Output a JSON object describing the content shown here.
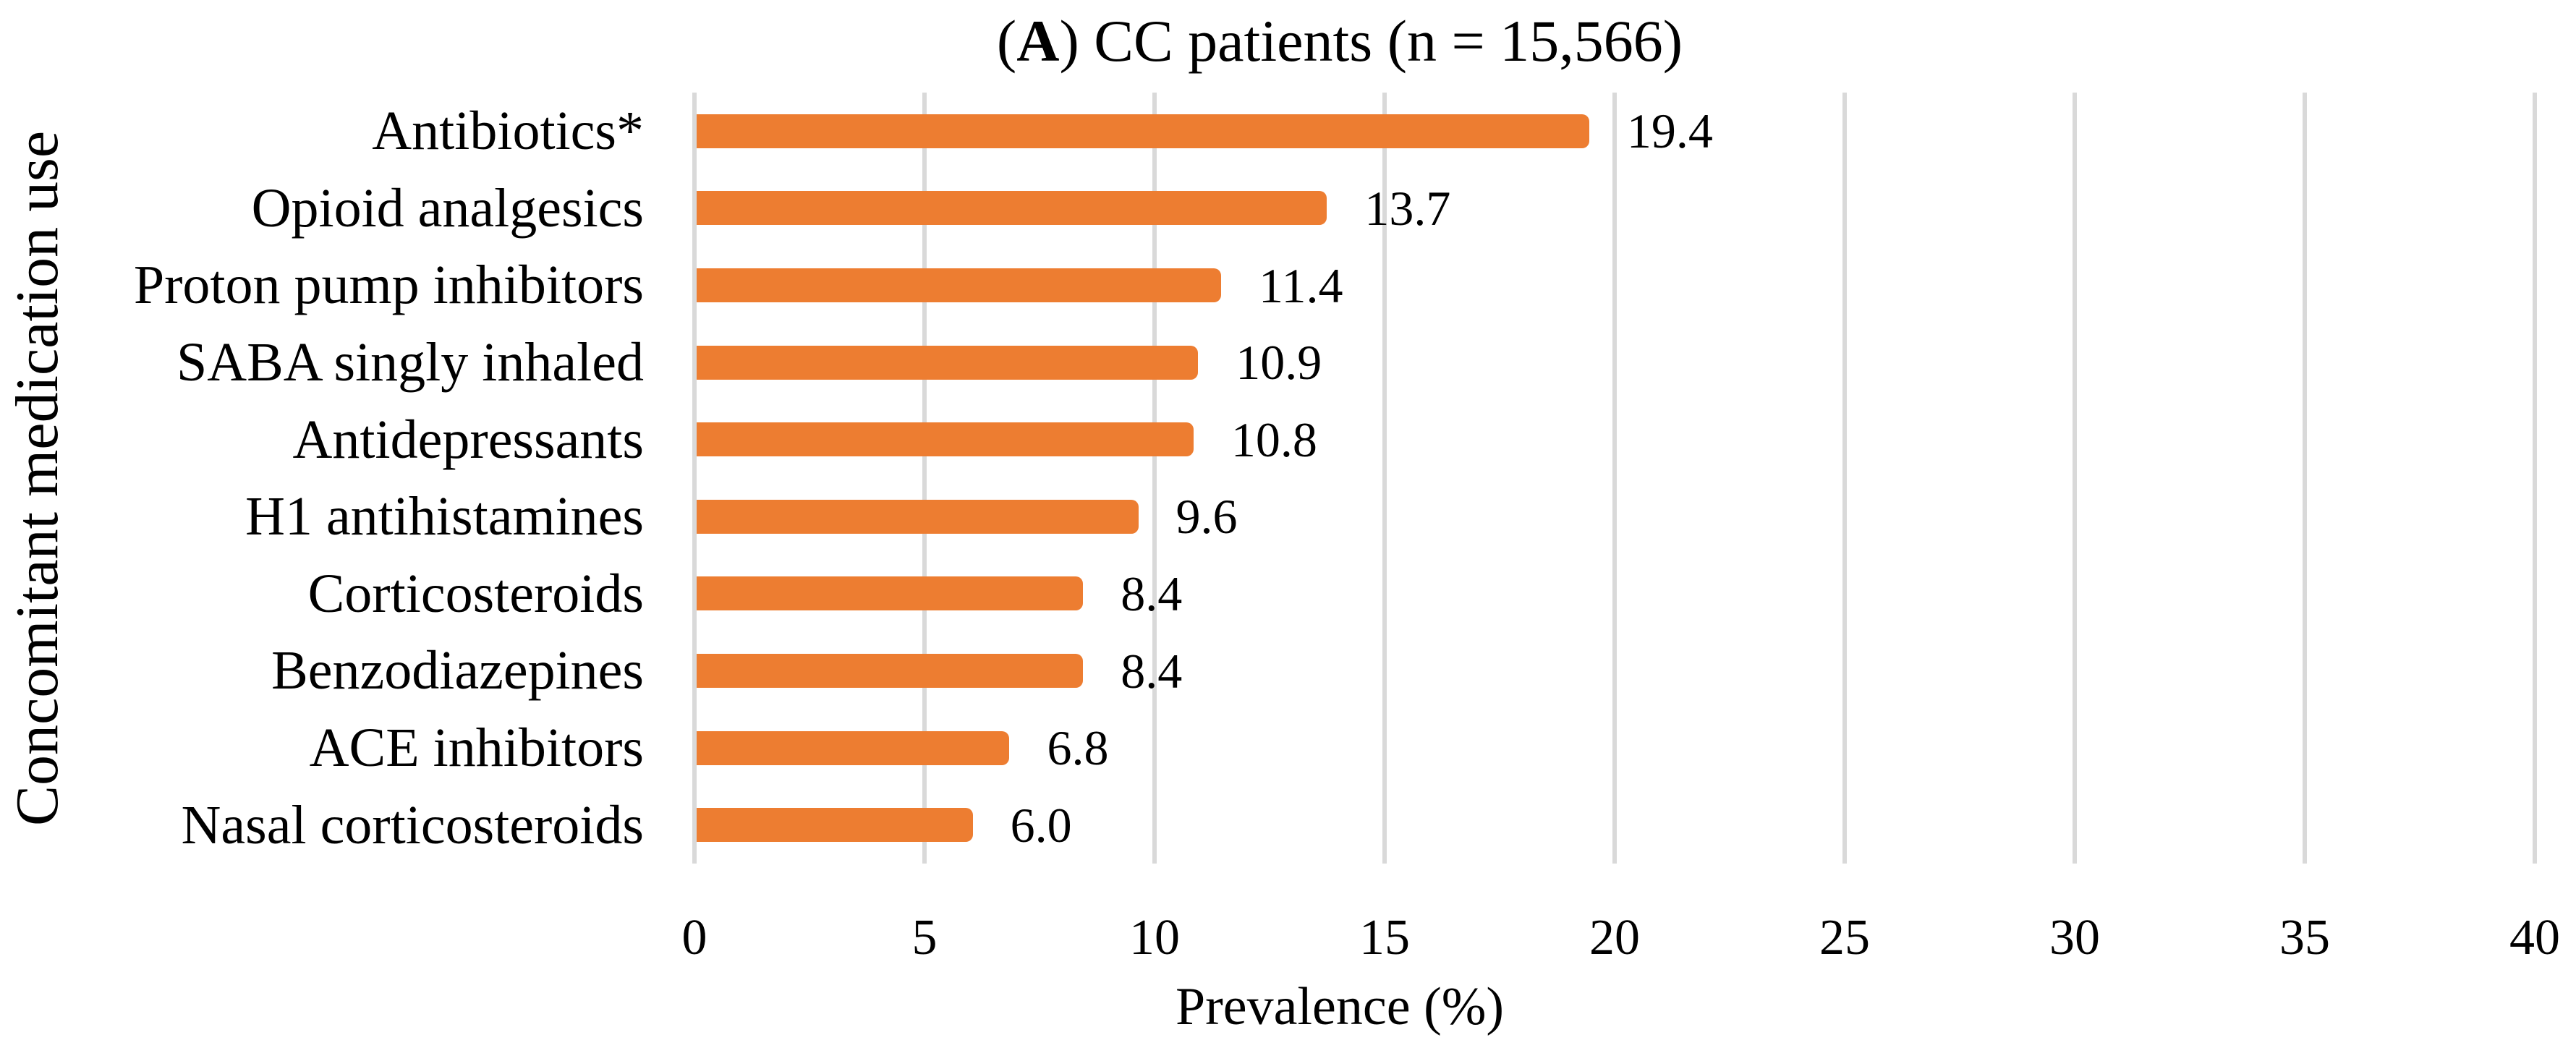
{
  "figure": {
    "title": {
      "prefix": "(",
      "bold": "A",
      "suffix": ") CC patients (n = 15,566)"
    },
    "x_axis_title": "Prevalence (%)",
    "y_axis_title": "Concomitant medication use"
  },
  "colors": {
    "bar": "#ED7D31",
    "gridline": "#D9D9D9",
    "text": "#000000",
    "background": "#FFFFFF"
  },
  "chart_data": {
    "type": "bar",
    "orientation": "horizontal",
    "title": "(A) CC patients (n = 15,566)",
    "categories": [
      "Antibiotics*",
      "Opioid analgesics",
      "Proton pump inhibitors",
      "SABA singly inhaled",
      "Antidepressants",
      "H1 antihistamines",
      "Corticosteroids",
      "Benzodiazepines",
      "ACE inhibitors",
      "Nasal corticosteroids"
    ],
    "values": [
      19.4,
      13.7,
      11.4,
      10.9,
      10.8,
      9.6,
      8.4,
      8.4,
      6.8,
      6.0
    ],
    "data_labels": [
      "19.4",
      "13.7",
      "11.4",
      "10.9",
      "10.8",
      "9.6",
      "8.4",
      "8.4",
      "6.8",
      "6.0"
    ],
    "xlabel": "Prevalence (%)",
    "ylabel": "Concomitant medication use",
    "xlim": [
      0,
      40
    ],
    "xticks": [
      0,
      5,
      10,
      15,
      20,
      25,
      30,
      35,
      40
    ],
    "grid": "vertical",
    "legend": "none"
  }
}
